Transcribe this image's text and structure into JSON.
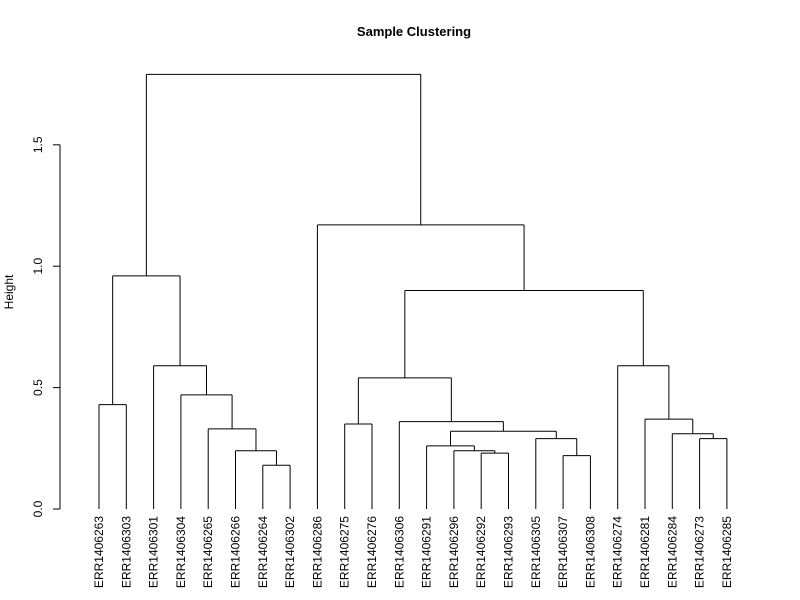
{
  "chart_data": {
    "type": "dendrogram",
    "title": "Sample Clustering",
    "xlabel": "",
    "ylabel": "Height",
    "ylim": [
      0,
      1.8
    ],
    "yticks": [
      "0.0",
      "0.5",
      "1.0",
      "1.5"
    ],
    "grid": false,
    "leaves": [
      "ERR1406263",
      "ERR1406303",
      "ERR1406301",
      "ERR1406304",
      "ERR1406265",
      "ERR1406266",
      "ERR1406264",
      "ERR1406302",
      "ERR1406286",
      "ERR1406275",
      "ERR1406276",
      "ERR1406306",
      "ERR1406291",
      "ERR1406296",
      "ERR1406292",
      "ERR1406293",
      "ERR1406305",
      "ERR1406307",
      "ERR1406308",
      "ERR1406274",
      "ERR1406281",
      "ERR1406284",
      "ERR1406273",
      "ERR1406285"
    ],
    "merges": [
      {
        "left": 0,
        "right": 1,
        "height": 0.43
      },
      {
        "left": 6,
        "right": 7,
        "height": 0.18
      },
      {
        "left": 5,
        "right": "m2",
        "height": 0.24
      },
      {
        "left": 4,
        "right": "m3",
        "height": 0.33
      },
      {
        "left": 3,
        "right": "m4",
        "height": 0.47
      },
      {
        "left": 2,
        "right": "m5",
        "height": 0.59
      },
      {
        "left": "m1",
        "right": "m6",
        "height": 0.96
      },
      {
        "left": 9,
        "right": 10,
        "height": 0.35
      },
      {
        "left": 14,
        "right": 15,
        "height": 0.23
      },
      {
        "left": 13,
        "right": "m9",
        "height": 0.24
      },
      {
        "left": 12,
        "right": "m10",
        "height": 0.26
      },
      {
        "left": 17,
        "right": 18,
        "height": 0.22
      },
      {
        "left": 16,
        "right": "m12",
        "height": 0.29
      },
      {
        "left": "m11",
        "right": "m13",
        "height": 0.32
      },
      {
        "left": 11,
        "right": "m14",
        "height": 0.36
      },
      {
        "left": "m8",
        "right": "m15",
        "height": 0.54
      },
      {
        "left": 22,
        "right": 23,
        "height": 0.29
      },
      {
        "left": 21,
        "right": "m17",
        "height": 0.31
      },
      {
        "left": 20,
        "right": "m18",
        "height": 0.37
      },
      {
        "left": 19,
        "right": "m19",
        "height": 0.59
      },
      {
        "left": "m16",
        "right": "m20",
        "height": 0.9
      },
      {
        "left": 8,
        "right": "m21",
        "height": 1.17
      },
      {
        "left": "m7",
        "right": "m22",
        "height": 1.79
      }
    ]
  }
}
